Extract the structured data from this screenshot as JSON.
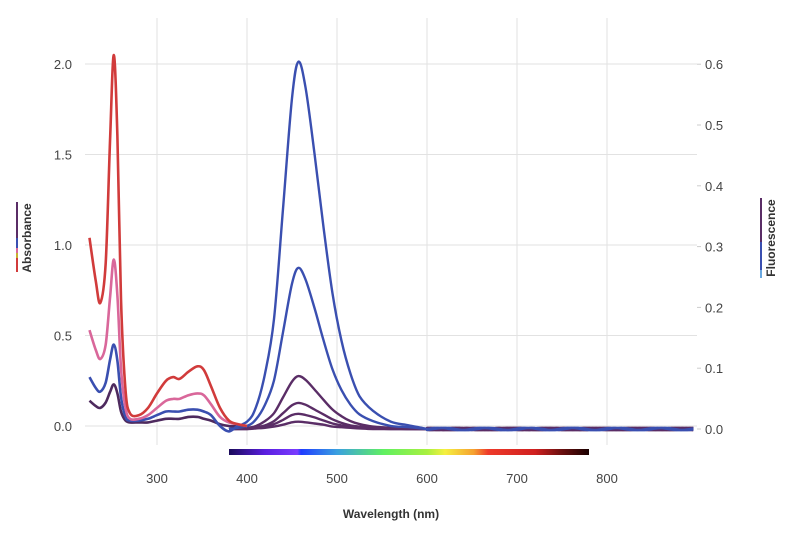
{
  "chart_data": {
    "type": "line",
    "xlabel": "Wavelength (nm)",
    "ylabel_left": "Absorbance",
    "ylabel_right": "Fluorescence",
    "xlim": [
      220,
      900
    ],
    "ylim_left": [
      -0.05,
      2.25
    ],
    "ylim_right": [
      -0.015,
      0.675
    ],
    "x_ticks": [
      "300",
      "400",
      "500",
      "600",
      "700",
      "800"
    ],
    "left_ticks": [
      "0.0",
      "0.5",
      "1.0",
      "1.5",
      "2.0"
    ],
    "right_ticks": [
      "0.0",
      "0.1",
      "0.2",
      "0.3",
      "0.4",
      "0.5",
      "0.6"
    ],
    "grid": true,
    "visible_spectrum_bar": {
      "from_nm": 380,
      "to_nm": 780
    },
    "absorbance": {
      "x": [
        225,
        232,
        237,
        243,
        248,
        252,
        256,
        260,
        265,
        270,
        280,
        290,
        300,
        310,
        318,
        325,
        335,
        345,
        352,
        360,
        370,
        380,
        390,
        400
      ],
      "series": [
        {
          "color": "#d13b3b",
          "values": [
            1.04,
            0.8,
            0.68,
            0.9,
            1.6,
            2.05,
            1.6,
            0.7,
            0.2,
            0.07,
            0.06,
            0.1,
            0.18,
            0.25,
            0.27,
            0.26,
            0.3,
            0.33,
            0.31,
            0.22,
            0.1,
            0.03,
            0.01,
            0
          ]
        },
        {
          "color": "#d9679a",
          "values": [
            0.53,
            0.42,
            0.37,
            0.45,
            0.72,
            0.92,
            0.72,
            0.32,
            0.1,
            0.04,
            0.04,
            0.06,
            0.1,
            0.14,
            0.15,
            0.15,
            0.17,
            0.18,
            0.17,
            0.12,
            0.05,
            0.02,
            0.01,
            0
          ]
        },
        {
          "color": "#3a4fb0",
          "values": [
            0.27,
            0.21,
            0.19,
            0.24,
            0.37,
            0.45,
            0.36,
            0.16,
            0.05,
            0.03,
            0.03,
            0.04,
            0.06,
            0.08,
            0.08,
            0.08,
            0.09,
            0.09,
            0.08,
            0.06,
            0.0,
            -0.03,
            0.0,
            0
          ]
        },
        {
          "color": "#4e2a5e",
          "values": [
            0.14,
            0.11,
            0.1,
            0.13,
            0.19,
            0.23,
            0.18,
            0.08,
            0.03,
            0.02,
            0.02,
            0.02,
            0.03,
            0.04,
            0.04,
            0.04,
            0.05,
            0.05,
            0.04,
            0.03,
            0.01,
            0.0,
            0,
            0
          ]
        }
      ]
    },
    "fluorescence": {
      "x": [
        380,
        400,
        410,
        420,
        430,
        440,
        450,
        457,
        465,
        475,
        485,
        495,
        505,
        515,
        525,
        540,
        560,
        580,
        600,
        900
      ],
      "series": [
        {
          "color": "#3a4fb0",
          "values": [
            0,
            0.012,
            0.036,
            0.091,
            0.181,
            0.362,
            0.544,
            0.604,
            0.562,
            0.453,
            0.332,
            0.223,
            0.145,
            0.091,
            0.054,
            0.03,
            0.012,
            0.006,
            0,
            0
          ]
        },
        {
          "color": "#3a4fb0",
          "values": [
            0,
            0.005,
            0.016,
            0.04,
            0.08,
            0.159,
            0.239,
            0.265,
            0.246,
            0.199,
            0.146,
            0.098,
            0.064,
            0.04,
            0.024,
            0.013,
            0.005,
            0.003,
            0,
            0
          ]
        },
        {
          "color": "#5a2d66",
          "values": [
            0,
            0.002,
            0.005,
            0.013,
            0.026,
            0.052,
            0.078,
            0.087,
            0.081,
            0.065,
            0.048,
            0.032,
            0.021,
            0.013,
            0.008,
            0.004,
            0.002,
            0.001,
            0,
            0
          ]
        },
        {
          "color": "#5a2d66",
          "values": [
            0,
            0.001,
            0.003,
            0.006,
            0.013,
            0.026,
            0.039,
            0.043,
            0.04,
            0.032,
            0.024,
            0.016,
            0.01,
            0.006,
            0.004,
            0.002,
            0.001,
            0,
            0,
            0
          ]
        },
        {
          "color": "#5a2d66",
          "values": [
            0,
            0,
            0.002,
            0.004,
            0.008,
            0.015,
            0.023,
            0.025,
            0.023,
            0.019,
            0.014,
            0.009,
            0.006,
            0.004,
            0.002,
            0.001,
            0,
            0,
            0,
            0
          ]
        },
        {
          "color": "#5a2d66",
          "values": [
            0,
            0,
            0.001,
            0.002,
            0.004,
            0.007,
            0.011,
            0.012,
            0.011,
            0.009,
            0.007,
            0.004,
            0.003,
            0.002,
            0.001,
            0,
            0,
            0,
            0,
            0
          ]
        }
      ]
    }
  }
}
